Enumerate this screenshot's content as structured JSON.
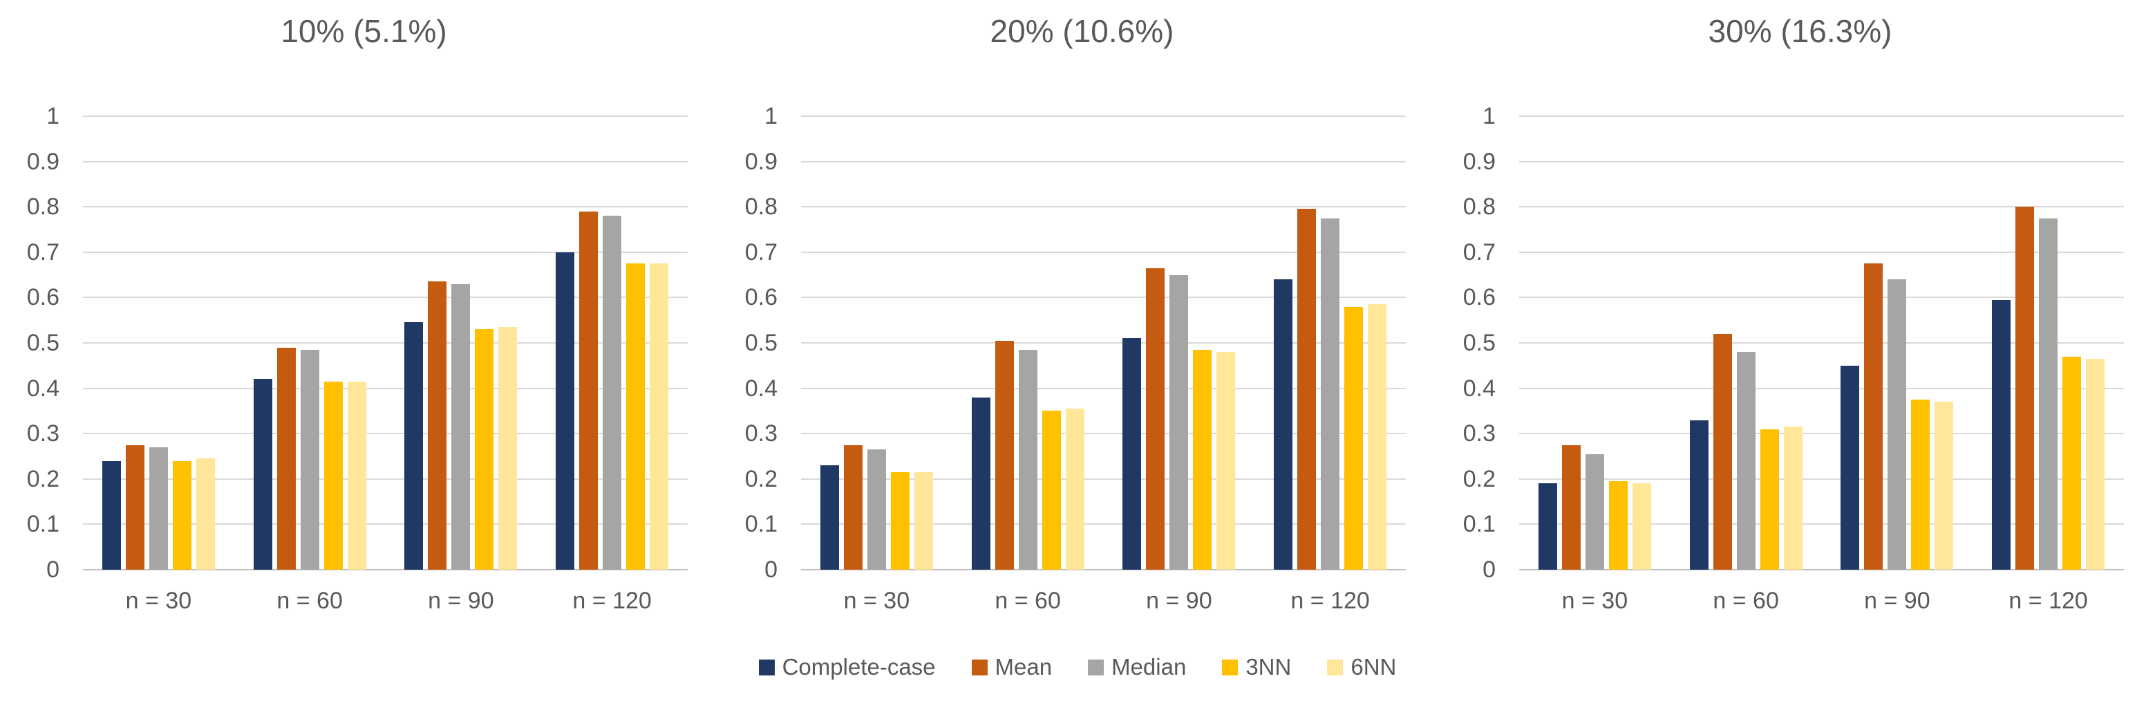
{
  "figure": {
    "background": "#FFFFFF",
    "text_color": "#595959",
    "gridline_color": "#D9D9D9",
    "axis_line_color": "#BFBFBF"
  },
  "chart_data": {
    "type": "bar",
    "grid": true,
    "legend_position": "bottom-center",
    "ylim": [
      0,
      1
    ],
    "ytick_step": 0.1,
    "ytick_labels": [
      "0",
      "0.1",
      "0.2",
      "0.3",
      "0.4",
      "0.5",
      "0.6",
      "0.7",
      "0.8",
      "0.9",
      "1"
    ],
    "categories": [
      "n = 30",
      "n = 60",
      "n = 90",
      "n = 120"
    ],
    "series_names": [
      "Complete-case",
      "Mean",
      "Median",
      "3NN",
      "6NN"
    ],
    "series_colors": [
      "#1F3864",
      "#C55A11",
      "#A5A5A5",
      "#FFC000",
      "#FFE699"
    ],
    "panels": [
      {
        "title": "10% (5.1%)",
        "series": [
          {
            "name": "Complete-case",
            "values": [
              0.24,
              0.42,
              0.545,
              0.7
            ]
          },
          {
            "name": "Mean",
            "values": [
              0.275,
              0.49,
              0.635,
              0.79
            ]
          },
          {
            "name": "Median",
            "values": [
              0.27,
              0.485,
              0.63,
              0.78
            ]
          },
          {
            "name": "3NN",
            "values": [
              0.24,
              0.415,
              0.53,
              0.675
            ]
          },
          {
            "name": "6NN",
            "values": [
              0.245,
              0.415,
              0.535,
              0.675
            ]
          }
        ]
      },
      {
        "title": "20% (10.6%)",
        "series": [
          {
            "name": "Complete-case",
            "values": [
              0.23,
              0.38,
              0.51,
              0.64
            ]
          },
          {
            "name": "Mean",
            "values": [
              0.275,
              0.505,
              0.665,
              0.795
            ]
          },
          {
            "name": "Median",
            "values": [
              0.265,
              0.485,
              0.65,
              0.775
            ]
          },
          {
            "name": "3NN",
            "values": [
              0.215,
              0.35,
              0.485,
              0.58
            ]
          },
          {
            "name": "6NN",
            "values": [
              0.215,
              0.355,
              0.48,
              0.585
            ]
          }
        ]
      },
      {
        "title": "30% (16.3%)",
        "series": [
          {
            "name": "Complete-case",
            "values": [
              0.19,
              0.33,
              0.45,
              0.595
            ]
          },
          {
            "name": "Mean",
            "values": [
              0.275,
              0.52,
              0.675,
              0.8
            ]
          },
          {
            "name": "Median",
            "values": [
              0.255,
              0.48,
              0.64,
              0.775
            ]
          },
          {
            "name": "3NN",
            "values": [
              0.195,
              0.31,
              0.375,
              0.47
            ]
          },
          {
            "name": "6NN",
            "values": [
              0.19,
              0.315,
              0.37,
              0.465
            ]
          }
        ]
      }
    ],
    "legend": {
      "items": [
        {
          "label": "Complete-case",
          "color": "#1F3864"
        },
        {
          "label": "Mean",
          "color": "#C55A11"
        },
        {
          "label": "Median",
          "color": "#A5A5A5"
        },
        {
          "label": "3NN",
          "color": "#FFC000"
        },
        {
          "label": "6NN",
          "color": "#FFE699"
        }
      ]
    }
  }
}
